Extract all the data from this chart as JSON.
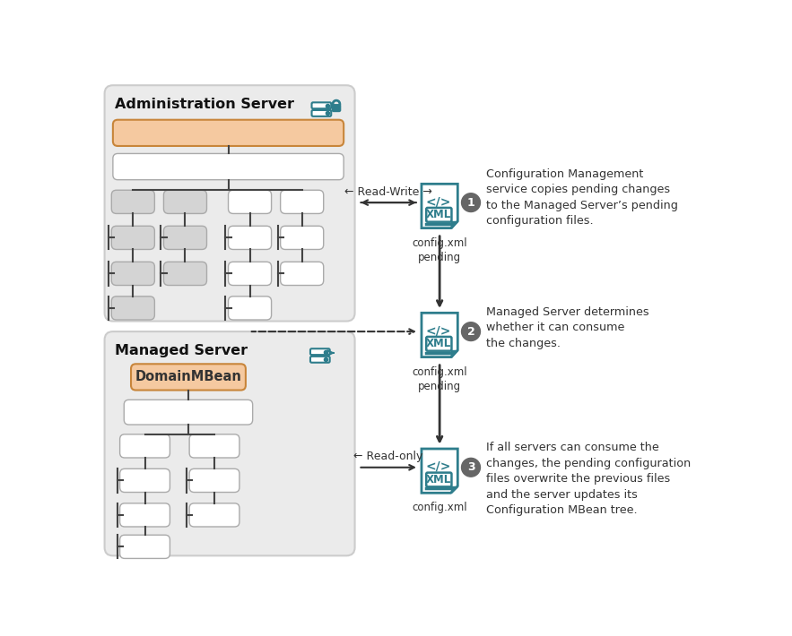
{
  "bg_color": "#ffffff",
  "admin_title": "Administration Server",
  "managed_title": "Managed Server",
  "domain_mbean_label": "DomainMBean",
  "step1_text": "Configuration Management\nservice copies pending changes\nto the Managed Server’s pending\nconfiguration files.",
  "step2_text": "Managed Server determines\nwhether it can consume\nthe changes.",
  "step3_text": "If all servers can consume the\nchanges, the pending configuration\nfiles overwrite the previous files\nand the server updates its\nConfiguration MBean tree.",
  "file_label1": "config.xml\npending",
  "file_label2": "config.xml\npending",
  "file_label3": "config.xml",
  "read_write_label": "← Read-Write →",
  "read_only_label": "← Read-only —",
  "teal_color": "#2e7d8c",
  "orange_fill": "#f5c9a0",
  "orange_border": "#c8853a",
  "gray_fill": "#d4d4d4",
  "gray_border": "#aaaaaa",
  "white_fill": "#ffffff",
  "white_border": "#aaaaaa",
  "box_bg": "#eeeeee",
  "box_border": "#cccccc",
  "line_color": "#444444",
  "text_color": "#333333",
  "step_circle_color": "#666666"
}
